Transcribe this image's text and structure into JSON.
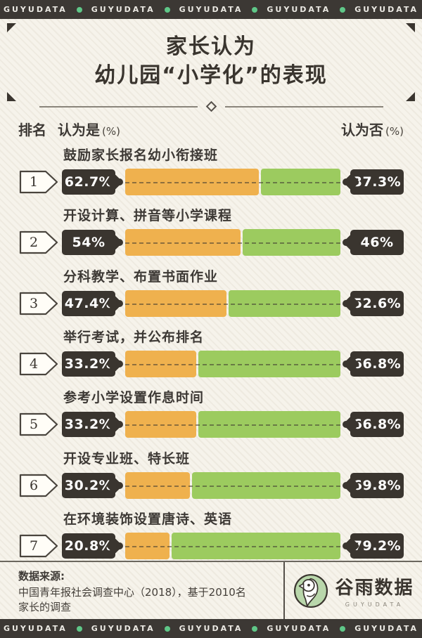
{
  "banner": {
    "brand": "GUYUDATA",
    "repeat": 5
  },
  "title": {
    "line1": "家长认为",
    "line2": "幼儿园“小学化”的表现"
  },
  "col_headers": {
    "rank": "排名",
    "yes": "认为是",
    "yes_unit": "(%)",
    "no": "认为否",
    "no_unit": "(%)"
  },
  "chart_data": {
    "type": "bar",
    "orientation": "horizontal-stacked",
    "title": "家长认为幼儿园“小学化”的表现",
    "categories": [
      "鼓励家长报名幼小衔接班",
      "开设计算、拼音等小学课程",
      "分科教学、布置书面作业",
      "举行考试，并公布排名",
      "参考小学设置作息时间",
      "开设专业班、特长班",
      "在环境装饰设置唐诗、英语"
    ],
    "series": [
      {
        "name": "认为是 (%)",
        "values": [
          62.7,
          54,
          47.4,
          33.2,
          33.2,
          30.2,
          20.8
        ]
      },
      {
        "name": "认为否 (%)",
        "values": [
          37.3,
          46,
          52.6,
          66.8,
          66.8,
          69.8,
          79.2
        ]
      }
    ],
    "value_range": [
      0,
      100
    ],
    "ranks": [
      1,
      2,
      3,
      4,
      5,
      6,
      7
    ],
    "source": "数据来源: 中国青年报社会调查中心（2018），基于2010名家长的调查"
  },
  "rows": [
    {
      "rank": "1",
      "label": "鼓励家长报名幼小衔接班",
      "yes": "62.7%",
      "no": "37.3%",
      "yes_val": 62.7,
      "no_val": 37.3
    },
    {
      "rank": "2",
      "label": "开设计算、拼音等小学课程",
      "yes": "54%",
      "no": "46%",
      "yes_val": 54,
      "no_val": 46
    },
    {
      "rank": "3",
      "label": "分科教学、布置书面作业",
      "yes": "47.4%",
      "no": "52.6%",
      "yes_val": 47.4,
      "no_val": 52.6
    },
    {
      "rank": "4",
      "label": "举行考试，并公布排名",
      "yes": "33.2%",
      "no": "66.8%",
      "yes_val": 33.2,
      "no_val": 66.8
    },
    {
      "rank": "5",
      "label": "参考小学设置作息时间",
      "yes": "33.2%",
      "no": "66.8%",
      "yes_val": 33.2,
      "no_val": 66.8
    },
    {
      "rank": "6",
      "label": "开设专业班、特长班",
      "yes": "30.2%",
      "no": "69.8%",
      "yes_val": 30.2,
      "no_val": 69.8
    },
    {
      "rank": "7",
      "label": "在环境装饰设置唐诗、英语",
      "yes": "20.8%",
      "no": "79.2%",
      "yes_val": 20.8,
      "no_val": 79.2
    }
  ],
  "footer": {
    "source_label": "数据来源:",
    "source_line1": "中国青年报社会调查中心（2018），基于2010名",
    "source_line2": "家长的调查",
    "logo_cn": "谷雨数据",
    "logo_en": "GUYUDATA"
  },
  "colors": {
    "banner_bg": "#3c3834",
    "dot_green": "#5fc788",
    "bar_yes_orange": "#efb14e",
    "bar_no_green": "#9ccb5f",
    "badge_dark": "#3a352f",
    "background_cream": "#f6f3eb",
    "logo_circle_green": "#b9d7ab"
  }
}
